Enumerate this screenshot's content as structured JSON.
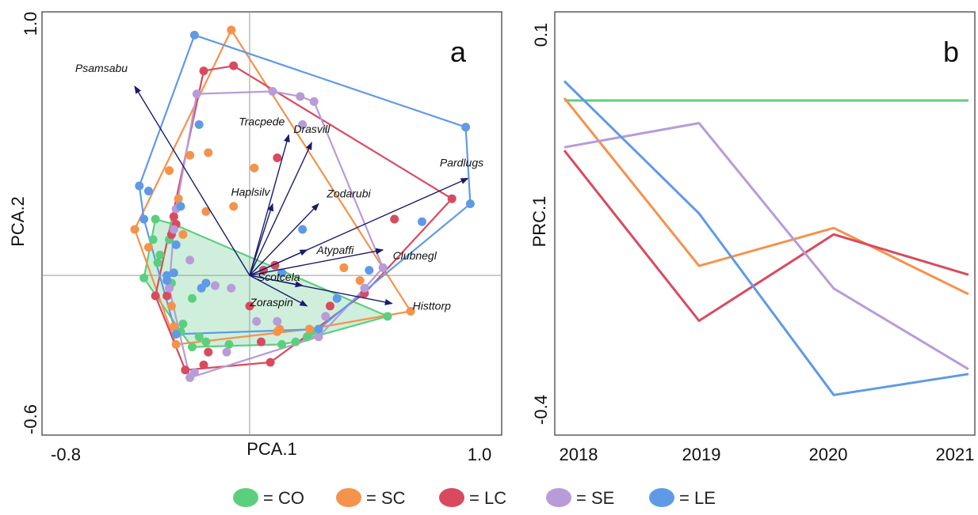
{
  "chart_data": [
    {
      "panel": "a",
      "type": "scatter",
      "xlabel": "PCA.1",
      "ylabel": "PCA.2",
      "xlim": [
        -0.8,
        1.0
      ],
      "ylim": [
        -0.6,
        1.0
      ],
      "xticks": [
        "-0.8",
        "1.0"
      ],
      "yticks": [
        "1.0",
        "-0.6"
      ],
      "colors": {
        "CO": "#5ccf7e",
        "SC": "#f5924b",
        "LC": "#d94a5f",
        "SE": "#b89bd9",
        "LE": "#5f9ae6"
      },
      "hull_fill": {
        "group": "CO",
        "color": "#bfead0"
      },
      "series": [
        {
          "name": "CO",
          "points": [
            [
              -0.42,
              0.14
            ],
            [
              -0.41,
              0.22
            ],
            [
              -0.33,
              0.2
            ],
            [
              -0.35,
              0.14
            ],
            [
              -0.39,
              0.08
            ],
            [
              -0.4,
              0.05
            ],
            [
              -0.34,
              -0.03
            ],
            [
              -0.25,
              -0.09
            ],
            [
              -0.29,
              -0.19
            ],
            [
              -0.22,
              -0.24
            ],
            [
              -0.19,
              -0.26
            ],
            [
              -0.09,
              -0.27
            ],
            [
              0.14,
              -0.27
            ],
            [
              0.2,
              -0.26
            ],
            [
              0.25,
              -0.24
            ],
            [
              0.27,
              -0.22
            ],
            [
              0.6,
              -0.16
            ],
            [
              -0.46,
              -0.01
            ],
            [
              -0.25,
              -0.28
            ],
            [
              -0.3,
              -0.22
            ]
          ]
        },
        {
          "name": "SC",
          "points": [
            [
              -0.08,
              0.96
            ],
            [
              -0.26,
              0.47
            ],
            [
              -0.18,
              0.48
            ],
            [
              -0.35,
              0.41
            ],
            [
              -0.19,
              0.25
            ],
            [
              -0.29,
              0.16
            ],
            [
              -0.5,
              0.18
            ],
            [
              -0.44,
              0.11
            ],
            [
              -0.07,
              0.27
            ],
            [
              0.02,
              0.42
            ],
            [
              -0.34,
              -0.12
            ],
            [
              -0.33,
              -0.2
            ],
            [
              -0.32,
              -0.27
            ],
            [
              0.13,
              -0.21
            ],
            [
              0.26,
              -0.21
            ],
            [
              0.41,
              0.03
            ],
            [
              0.48,
              -0.02
            ],
            [
              0.7,
              -0.14
            ],
            [
              0.12,
              -0.22
            ],
            [
              -0.31,
              0.3
            ]
          ]
        },
        {
          "name": "LC",
          "points": [
            [
              -0.2,
              0.8
            ],
            [
              -0.07,
              0.82
            ],
            [
              0.12,
              0.46
            ],
            [
              -0.34,
              0.16
            ],
            [
              -0.41,
              -0.08
            ],
            [
              -0.36,
              -0.08
            ],
            [
              -0.33,
              0.23
            ],
            [
              0.05,
              -0.26
            ],
            [
              0.09,
              -0.34
            ],
            [
              0.35,
              -0.12
            ],
            [
              0.63,
              0.22
            ],
            [
              0.88,
              0.3
            ],
            [
              0.11,
              0.04
            ],
            [
              0.0,
              -0.12
            ],
            [
              -0.2,
              -0.35
            ],
            [
              -0.28,
              -0.37
            ],
            [
              0.5,
              -0.07
            ],
            [
              -0.32,
              0.2
            ],
            [
              0.06,
              0.02
            ],
            [
              -0.18,
              -0.3
            ]
          ]
        },
        {
          "name": "SE",
          "points": [
            [
              -0.23,
              0.71
            ],
            [
              0.1,
              0.72
            ],
            [
              0.22,
              0.7
            ],
            [
              0.28,
              0.68
            ],
            [
              0.23,
              0.59
            ],
            [
              -0.32,
              0.26
            ],
            [
              -0.33,
              0.18
            ],
            [
              -0.35,
              -0.05
            ],
            [
              -0.26,
              0.06
            ],
            [
              -0.15,
              -0.04
            ],
            [
              -0.08,
              -0.05
            ],
            [
              0.03,
              -0.18
            ],
            [
              0.12,
              -0.18
            ],
            [
              0.33,
              -0.16
            ],
            [
              0.5,
              -0.05
            ],
            [
              0.58,
              0.03
            ],
            [
              -0.26,
              -0.4
            ],
            [
              -0.1,
              -0.3
            ],
            [
              0.3,
              -0.24
            ],
            [
              -0.24,
              -0.38
            ]
          ]
        },
        {
          "name": "LE",
          "points": [
            [
              -0.24,
              0.94
            ],
            [
              -0.22,
              0.59
            ],
            [
              -0.48,
              0.35
            ],
            [
              -0.44,
              0.33
            ],
            [
              -0.46,
              0.22
            ],
            [
              -0.3,
              0.27
            ],
            [
              -0.21,
              -0.05
            ],
            [
              -0.32,
              0.12
            ],
            [
              -0.36,
              -0.02
            ],
            [
              -0.36,
              0.0
            ],
            [
              -0.33,
              0.01
            ],
            [
              0.14,
              0.01
            ],
            [
              0.23,
              0.18
            ],
            [
              0.38,
              -0.09
            ],
            [
              0.52,
              0.02
            ],
            [
              0.75,
              0.21
            ],
            [
              0.94,
              0.58
            ],
            [
              0.96,
              0.28
            ],
            [
              0.3,
              -0.21
            ],
            [
              -0.32,
              -0.23
            ],
            [
              -0.19,
              -0.03
            ]
          ]
        }
      ],
      "vectors": [
        {
          "name": "Psamsabu",
          "x": -0.5,
          "y": 0.74
        },
        {
          "name": "Tracpede",
          "x": 0.17,
          "y": 0.55
        },
        {
          "name": "Drasvill",
          "x": 0.27,
          "y": 0.52
        },
        {
          "name": "Haplsilv",
          "x": 0.1,
          "y": 0.28
        },
        {
          "name": "Zodarubi",
          "x": 0.3,
          "y": 0.28
        },
        {
          "name": "Pardlugs",
          "x": 0.95,
          "y": 0.38
        },
        {
          "name": "Atypaffi",
          "x": 0.25,
          "y": 0.1
        },
        {
          "name": "Clubnegl",
          "x": 0.58,
          "y": 0.1
        },
        {
          "name": "Scotcela",
          "x": 0.23,
          "y": -0.04
        },
        {
          "name": "Zoraspin",
          "x": 0.25,
          "y": -0.12
        },
        {
          "name": "Histtorp",
          "x": 0.62,
          "y": -0.11
        }
      ]
    },
    {
      "panel": "b",
      "type": "line",
      "xlabel": "",
      "ylabel": "PRC.1",
      "x": [
        "2018",
        "2019",
        "2020",
        "2021"
      ],
      "ylim": [
        -0.4,
        0.1
      ],
      "yticks": [
        "0.1",
        "-0.4"
      ],
      "series": [
        {
          "name": "CO",
          "color": "#5ccf7e",
          "values": [
            0.0,
            0.0,
            0.0,
            0.0
          ]
        },
        {
          "name": "SC",
          "color": "#f5924b",
          "values": [
            0.003,
            -0.205,
            -0.158,
            -0.24
          ]
        },
        {
          "name": "LC",
          "color": "#d94a5f",
          "values": [
            -0.062,
            -0.273,
            -0.166,
            -0.216
          ]
        },
        {
          "name": "SE",
          "color": "#b89bd9",
          "values": [
            -0.058,
            -0.028,
            -0.233,
            -0.333
          ]
        },
        {
          "name": "LE",
          "color": "#5f9ae6",
          "values": [
            0.024,
            -0.14,
            -0.365,
            -0.339
          ]
        }
      ]
    }
  ],
  "panel_a_letter": "a",
  "panel_b_letter": "b",
  "legend": [
    {
      "label": "= CO",
      "color": "#5ccf7e"
    },
    {
      "label": "= SC",
      "color": "#f5924b"
    },
    {
      "label": "= LC",
      "color": "#d94a5f"
    },
    {
      "label": "= SE",
      "color": "#b89bd9"
    },
    {
      "label": "= LE",
      "color": "#5f9ae6"
    }
  ],
  "arrow_color": "#1a1a6e"
}
